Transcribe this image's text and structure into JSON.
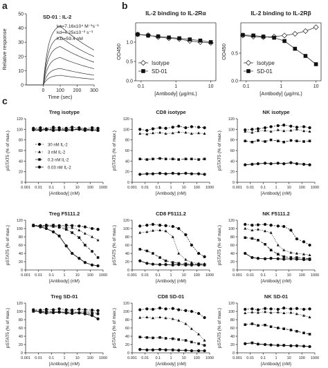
{
  "panel_labels": [
    "a",
    "b",
    "c"
  ],
  "chart_data": [
    {
      "id": "spr",
      "type": "line",
      "title": "",
      "inset": [
        "SD-01 : IL-2",
        "ka=7.16x10⁴ M⁻¹s⁻¹",
        "kd=4.25x10⁻³ s⁻¹",
        "KD=59.4 nM"
      ],
      "xlabel": "Time (sec)",
      "ylabel": "Relative response",
      "xlim": [
        -100,
        300
      ],
      "ylim": [
        0,
        50
      ],
      "xticks": [
        0,
        100,
        200,
        300
      ],
      "yticks": [
        0,
        10,
        20,
        30,
        40,
        50
      ],
      "series": [
        {
          "plateau": 43
        },
        {
          "plateau": 35
        },
        {
          "plateau": 28
        },
        {
          "plateau": 20
        },
        {
          "plateau": 12
        },
        {
          "plateau": 7
        }
      ]
    },
    {
      "id": "b1",
      "type": "line",
      "title": "IL-2 binding to IL-2Rα",
      "xlabel": "[Antibody] (μg/mL)",
      "ylabel": "OD450",
      "xscale": "log",
      "xlim": [
        0.07,
        14
      ],
      "ylim": [
        0,
        1.5
      ],
      "xticks": [
        0.1,
        1,
        10
      ],
      "yticks": [
        0,
        0.5,
        1.0
      ],
      "legend": [
        "Isotype",
        "SD-01"
      ],
      "legend_loc": "bottom-left",
      "series": [
        {
          "name": "Isotype",
          "x": [
            0.08,
            0.16,
            0.31,
            0.63,
            1.25,
            2.5,
            5,
            10
          ],
          "y": [
            1.2,
            1.18,
            1.13,
            1.1,
            1.08,
            1.03,
            1.0,
            0.98
          ]
        },
        {
          "name": "SD-01",
          "x": [
            0.08,
            0.16,
            0.31,
            0.63,
            1.25,
            2.5,
            5,
            10
          ],
          "y": [
            1.2,
            1.17,
            1.15,
            1.12,
            1.1,
            1.07,
            1.04,
            1.0
          ]
        }
      ]
    },
    {
      "id": "b2",
      "type": "line",
      "title": "IL-2 binding to IL-2Rβ",
      "xlabel": "[Antibody] (μg/mL)",
      "ylabel": "OD450",
      "xscale": "log",
      "xlim": [
        0.07,
        14
      ],
      "ylim": [
        0,
        1.05
      ],
      "xticks": [
        0.1,
        1,
        10
      ],
      "yticks": [
        0,
        0.5
      ],
      "legend": [
        "Isotype",
        "SD-01"
      ],
      "legend_loc": "bottom-left",
      "series": [
        {
          "name": "Isotype",
          "x": [
            0.08,
            0.16,
            0.31,
            0.63,
            1.25,
            2.5,
            5,
            10
          ],
          "y": [
            0.82,
            0.8,
            0.79,
            0.8,
            0.82,
            0.85,
            0.9,
            0.97
          ]
        },
        {
          "name": "SD-01",
          "x": [
            0.08,
            0.16,
            0.31,
            0.63,
            1.25,
            2.5,
            5,
            10
          ],
          "y": [
            0.83,
            0.82,
            0.8,
            0.78,
            0.72,
            0.58,
            0.45,
            0.3
          ]
        }
      ]
    },
    {
      "id": "c-treg-iso",
      "type": "line",
      "title": "Treg isotype",
      "xlabel": "[Antibody] (nM)",
      "ylabel": "pSTAT5 (% of max.)",
      "xscale": "log",
      "xlim": [
        0.001,
        1000
      ],
      "ylim": [
        0,
        120
      ],
      "xticks": [
        "0.001",
        "0.01",
        "0.1",
        "1",
        "10",
        "100",
        "1000"
      ],
      "yticks": [
        0,
        20,
        40,
        60,
        80,
        100,
        120
      ],
      "legend": [
        "30 nM IL-2",
        "3 nM IL-2",
        "0.3 nM IL-2",
        "0.03 nM IL-2"
      ],
      "x": [
        0.004,
        0.014,
        0.04,
        0.14,
        0.4,
        1.4,
        4,
        14,
        40,
        140,
        400
      ],
      "series": [
        {
          "name": "30 nM IL-2",
          "values": [
            102,
            103,
            101,
            104,
            103,
            102,
            104,
            103,
            101,
            103,
            102
          ]
        },
        {
          "name": "3 nM IL-2",
          "values": [
            100,
            99,
            101,
            98,
            100,
            102,
            99,
            100,
            101,
            99,
            100
          ]
        },
        {
          "name": "0.3 nM IL-2",
          "values": [
            101,
            100,
            99,
            101,
            100,
            99,
            100,
            101,
            100,
            99,
            98
          ]
        },
        {
          "name": "0.03 nM IL-2",
          "values": [
            99,
            98,
            100,
            98,
            99,
            98,
            99,
            100,
            98,
            99,
            98
          ]
        }
      ]
    },
    {
      "id": "c-cd8-iso",
      "type": "line",
      "title": "CD8 isotype",
      "xlabel": "[Antibody] (nM)",
      "ylabel": "pSTAT5 (% of max.)",
      "xscale": "log",
      "xlim": [
        0.001,
        1000
      ],
      "ylim": [
        0,
        120
      ],
      "xticks": [
        "0.001",
        "0.01",
        "0.1",
        "1",
        "10",
        "100",
        "1000"
      ],
      "yticks": [
        0,
        20,
        40,
        60,
        80,
        100,
        120
      ],
      "x": [
        0.004,
        0.014,
        0.04,
        0.14,
        0.4,
        1.4,
        4,
        14,
        40,
        140,
        400
      ],
      "series": [
        {
          "name": "30 nM IL-2",
          "values": [
            100,
            98,
            101,
            103,
            102,
            104,
            106,
            103,
            105,
            104,
            103
          ]
        },
        {
          "name": "3 nM IL-2",
          "values": [
            92,
            91,
            93,
            94,
            92,
            93,
            95,
            94,
            92,
            93,
            92
          ]
        },
        {
          "name": "0.3 nM IL-2",
          "values": [
            44,
            43,
            44,
            45,
            44,
            44,
            43,
            44,
            44,
            43,
            44
          ]
        },
        {
          "name": "0.03 nM IL-2",
          "values": [
            15,
            16,
            16,
            17,
            16,
            17,
            16,
            17,
            16,
            16,
            15
          ]
        }
      ]
    },
    {
      "id": "c-nk-iso",
      "type": "line",
      "title": "NK isotype",
      "xlabel": "[Antibody] (nM)",
      "ylabel": "pSTAT5 (% of max.)",
      "xscale": "log",
      "xlim": [
        0.001,
        1000
      ],
      "ylim": [
        0,
        120
      ],
      "xticks": [
        "0.001",
        "0.01",
        "0.1",
        "1",
        "10",
        "100",
        "1000"
      ],
      "yticks": [
        0,
        20,
        40,
        60,
        80,
        100,
        120
      ],
      "x": [
        0.004,
        0.014,
        0.04,
        0.14,
        0.4,
        1.4,
        4,
        14,
        40,
        140,
        400
      ],
      "series": [
        {
          "name": "30 nM IL-2",
          "values": [
            99,
            100,
            101,
            103,
            105,
            107,
            108,
            106,
            104,
            105,
            103
          ]
        },
        {
          "name": "3 nM IL-2",
          "values": [
            96,
            94,
            97,
            98,
            96,
            99,
            97,
            98,
            100,
            97,
            96
          ]
        },
        {
          "name": "0.3 nM IL-2",
          "values": [
            78,
            76,
            79,
            77,
            80,
            78,
            76,
            79,
            78,
            77,
            78
          ]
        },
        {
          "name": "0.03 nM IL-2",
          "values": [
            33,
            34,
            35,
            36,
            35,
            36,
            35,
            37,
            35,
            34,
            33
          ]
        }
      ]
    },
    {
      "id": "c-treg-f",
      "type": "line",
      "title": "Treg F5111.2",
      "xlabel": "[Antibody] (nM)",
      "ylabel": "pSTAT5 (% of max.)",
      "xscale": "log",
      "xlim": [
        0.001,
        1000
      ],
      "ylim": [
        0,
        120
      ],
      "xticks": [
        "0.001",
        "0.01",
        "0.1",
        "1",
        "10",
        "100",
        "1000"
      ],
      "yticks": [
        0,
        20,
        40,
        60,
        80,
        100,
        120
      ],
      "x": [
        0.004,
        0.014,
        0.04,
        0.14,
        0.4,
        1.4,
        4,
        14,
        40,
        140,
        400
      ],
      "series": [
        {
          "name": "30 nM IL-2",
          "values": [
            108,
            107,
            108,
            108,
            107,
            108,
            107,
            106,
            104,
            100,
            98
          ]
        },
        {
          "name": "3 nM IL-2",
          "values": [
            106,
            105,
            106,
            107,
            105,
            104,
            102,
            96,
            88,
            80,
            72
          ]
        },
        {
          "name": "0.3 nM IL-2",
          "values": [
            107,
            106,
            106,
            105,
            103,
            98,
            90,
            78,
            60,
            45,
            30
          ]
        },
        {
          "name": "0.03 nM IL-2",
          "values": [
            108,
            104,
            100,
            92,
            82,
            58,
            40,
            28,
            18,
            12,
            10
          ]
        }
      ]
    },
    {
      "id": "c-cd8-f",
      "type": "line",
      "title": "CD8 F5111.2",
      "xlabel": "[Antibody] (nM)",
      "ylabel": "pSTAT5 (% of max.)",
      "xscale": "log",
      "xlim": [
        0.001,
        1000
      ],
      "ylim": [
        0,
        120
      ],
      "xticks": [
        "0.001",
        "0.01",
        "0.1",
        "1",
        "10",
        "100",
        "1000"
      ],
      "yticks": [
        0,
        20,
        40,
        60,
        80,
        100,
        120
      ],
      "x": [
        0.004,
        0.014,
        0.04,
        0.14,
        0.4,
        1.4,
        4,
        14,
        40,
        140,
        400
      ],
      "series": [
        {
          "name": "30 nM IL-2",
          "values": [
            106,
            108,
            110,
            108,
            107,
            105,
            100,
            85,
            60,
            40,
            32
          ]
        },
        {
          "name": "3 nM IL-2",
          "values": [
            90,
            92,
            95,
            96,
            94,
            80,
            40,
            25,
            18,
            16,
            15
          ]
        },
        {
          "name": "0.3 nM IL-2",
          "values": [
            50,
            46,
            40,
            30,
            22,
            18,
            16,
            15,
            14,
            14,
            13
          ]
        },
        {
          "name": "0.03 nM IL-2",
          "values": [
            22,
            16,
            14,
            13,
            13,
            12,
            13,
            12,
            12,
            12,
            12
          ]
        }
      ]
    },
    {
      "id": "c-nk-f",
      "type": "line",
      "title": "NK F5111.2",
      "xlabel": "[Antibody] (nM)",
      "ylabel": "pSTAT5 (% of max.)",
      "xscale": "log",
      "xlim": [
        0.001,
        1000
      ],
      "ylim": [
        0,
        120
      ],
      "xticks": [
        "0.001",
        "0.01",
        "0.1",
        "1",
        "10",
        "100",
        "1000"
      ],
      "yticks": [
        0,
        20,
        40,
        60,
        80,
        100,
        120
      ],
      "x": [
        0.004,
        0.014,
        0.04,
        0.14,
        0.4,
        1.4,
        4,
        14,
        40,
        140,
        400
      ],
      "series": [
        {
          "name": "30 nM IL-2",
          "values": [
            110,
            108,
            109,
            110,
            108,
            106,
            105,
            96,
            75,
            68,
            60
          ]
        },
        {
          "name": "3 nM IL-2",
          "values": [
            100,
            96,
            98,
            94,
            90,
            60,
            48,
            42,
            40,
            38,
            36
          ]
        },
        {
          "name": "0.3 nM IL-2",
          "values": [
            78,
            76,
            72,
            62,
            48,
            38,
            32,
            30,
            30,
            28,
            27
          ]
        },
        {
          "name": "0.03 nM IL-2",
          "values": [
            40,
            30,
            28,
            27,
            28,
            27,
            26,
            27,
            26,
            25,
            25
          ]
        }
      ]
    },
    {
      "id": "c-treg-sd",
      "type": "line",
      "title": "Treg SD-01",
      "xlabel": "[Antibody] (nM)",
      "ylabel": "pSTAT5 (% of max.)",
      "xscale": "log",
      "xlim": [
        0.001,
        1000
      ],
      "ylim": [
        0,
        120
      ],
      "xticks": [
        "0.001",
        "0.01",
        "0.1",
        "1",
        "10",
        "100",
        "1000"
      ],
      "yticks": [
        0,
        20,
        40,
        60,
        80,
        100,
        120
      ],
      "x": [
        0.004,
        0.014,
        0.04,
        0.14,
        0.4,
        1.4,
        4,
        14,
        40,
        140,
        400
      ],
      "series": [
        {
          "name": "30 nM IL-2",
          "values": [
            104,
            103,
            105,
            104,
            106,
            104,
            103,
            105,
            104,
            103,
            102
          ]
        },
        {
          "name": "3 nM IL-2",
          "values": [
            102,
            100,
            101,
            99,
            100,
            101,
            99,
            98,
            100,
            99,
            97
          ]
        },
        {
          "name": "0.3 nM IL-2",
          "values": [
            100,
            99,
            100,
            98,
            99,
            97,
            98,
            96,
            97,
            95,
            94
          ]
        },
        {
          "name": "0.03 nM IL-2",
          "values": [
            103,
            98,
            96,
            97,
            98,
            96,
            95,
            97,
            94,
            90,
            82
          ]
        }
      ]
    },
    {
      "id": "c-cd8-sd",
      "type": "line",
      "title": "CD8 SD-01",
      "xlabel": "[Antibody] (nM)",
      "ylabel": "pSTAT5 (% of max.)",
      "xscale": "log",
      "xlim": [
        0.001,
        1000
      ],
      "ylim": [
        0,
        120
      ],
      "xticks": [
        "0.001",
        "0.01",
        "0.1",
        "1",
        "10",
        "100",
        "1000"
      ],
      "yticks": [
        0,
        20,
        40,
        60,
        80,
        100,
        120
      ],
      "x": [
        0.004,
        0.014,
        0.04,
        0.14,
        0.4,
        1.4,
        4,
        14,
        40,
        140,
        400
      ],
      "series": [
        {
          "name": "30 nM IL-2",
          "values": [
            104,
            106,
            105,
            108,
            106,
            107,
            104,
            102,
            100,
            95,
            85
          ]
        },
        {
          "name": "3 nM IL-2",
          "values": [
            85,
            86,
            84,
            86,
            84,
            82,
            78,
            70,
            58,
            45,
            30
          ]
        },
        {
          "name": "0.3 nM IL-2",
          "values": [
            38,
            37,
            36,
            37,
            35,
            34,
            32,
            30,
            26,
            22,
            18
          ]
        },
        {
          "name": "0.03 nM IL-2",
          "values": [
            8,
            7,
            7,
            8,
            7,
            7,
            6,
            6,
            5,
            5,
            5
          ]
        }
      ]
    },
    {
      "id": "c-nk-sd",
      "type": "line",
      "title": "NK SD-01",
      "xlabel": "[Antibody] (nM)",
      "ylabel": "pSTAT5 (% of max.)",
      "xscale": "log",
      "xlim": [
        0.001,
        1000
      ],
      "ylim": [
        0,
        120
      ],
      "xticks": [
        "0.001",
        "0.01",
        "0.1",
        "1",
        "10",
        "100",
        "1000"
      ],
      "yticks": [
        0,
        20,
        40,
        60,
        80,
        100,
        120
      ],
      "x": [
        0.004,
        0.014,
        0.04,
        0.14,
        0.4,
        1.4,
        4,
        14,
        40,
        140,
        400
      ],
      "series": [
        {
          "name": "30 nM IL-2",
          "values": [
            105,
            106,
            104,
            107,
            106,
            105,
            108,
            106,
            107,
            105,
            106
          ]
        },
        {
          "name": "3 nM IL-2",
          "values": [
            96,
            98,
            97,
            99,
            97,
            98,
            96,
            97,
            94,
            90,
            86
          ]
        },
        {
          "name": "0.3 nM IL-2",
          "values": [
            68,
            70,
            66,
            67,
            63,
            60,
            58,
            55,
            52,
            48,
            45
          ]
        },
        {
          "name": "0.03 nM IL-2",
          "values": [
            22,
            24,
            21,
            20,
            19,
            18,
            18,
            17,
            17,
            16,
            15
          ]
        }
      ]
    }
  ]
}
